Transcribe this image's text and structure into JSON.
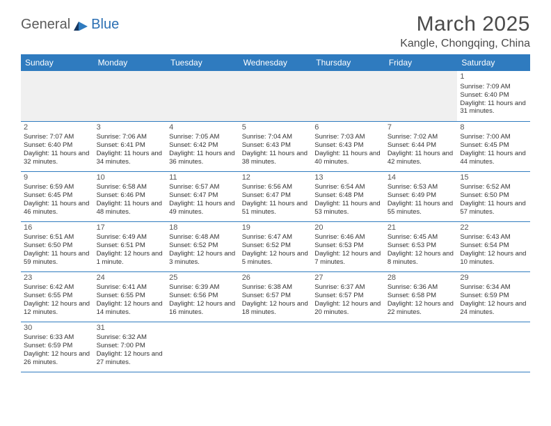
{
  "logo": {
    "part1": "General",
    "part2": "Blue"
  },
  "title": "March 2025",
  "location": "Kangle, Chongqing, China",
  "colors": {
    "header_bg": "#2f7bbf",
    "header_fg": "#ffffff",
    "logo_grey": "#5a5a5a",
    "logo_blue": "#2b6fb3",
    "text": "#333333",
    "grey_bg": "#f0f0f0",
    "border": "#2f7bbf"
  },
  "weekdays": [
    "Sunday",
    "Monday",
    "Tuesday",
    "Wednesday",
    "Thursday",
    "Friday",
    "Saturday"
  ],
  "weeks": [
    [
      null,
      null,
      null,
      null,
      null,
      null,
      {
        "n": "1",
        "sunrise": "Sunrise: 7:09 AM",
        "sunset": "Sunset: 6:40 PM",
        "daylight": "Daylight: 11 hours and 31 minutes."
      }
    ],
    [
      {
        "n": "2",
        "sunrise": "Sunrise: 7:07 AM",
        "sunset": "Sunset: 6:40 PM",
        "daylight": "Daylight: 11 hours and 32 minutes."
      },
      {
        "n": "3",
        "sunrise": "Sunrise: 7:06 AM",
        "sunset": "Sunset: 6:41 PM",
        "daylight": "Daylight: 11 hours and 34 minutes."
      },
      {
        "n": "4",
        "sunrise": "Sunrise: 7:05 AM",
        "sunset": "Sunset: 6:42 PM",
        "daylight": "Daylight: 11 hours and 36 minutes."
      },
      {
        "n": "5",
        "sunrise": "Sunrise: 7:04 AM",
        "sunset": "Sunset: 6:43 PM",
        "daylight": "Daylight: 11 hours and 38 minutes."
      },
      {
        "n": "6",
        "sunrise": "Sunrise: 7:03 AM",
        "sunset": "Sunset: 6:43 PM",
        "daylight": "Daylight: 11 hours and 40 minutes."
      },
      {
        "n": "7",
        "sunrise": "Sunrise: 7:02 AM",
        "sunset": "Sunset: 6:44 PM",
        "daylight": "Daylight: 11 hours and 42 minutes."
      },
      {
        "n": "8",
        "sunrise": "Sunrise: 7:00 AM",
        "sunset": "Sunset: 6:45 PM",
        "daylight": "Daylight: 11 hours and 44 minutes."
      }
    ],
    [
      {
        "n": "9",
        "sunrise": "Sunrise: 6:59 AM",
        "sunset": "Sunset: 6:45 PM",
        "daylight": "Daylight: 11 hours and 46 minutes."
      },
      {
        "n": "10",
        "sunrise": "Sunrise: 6:58 AM",
        "sunset": "Sunset: 6:46 PM",
        "daylight": "Daylight: 11 hours and 48 minutes."
      },
      {
        "n": "11",
        "sunrise": "Sunrise: 6:57 AM",
        "sunset": "Sunset: 6:47 PM",
        "daylight": "Daylight: 11 hours and 49 minutes."
      },
      {
        "n": "12",
        "sunrise": "Sunrise: 6:56 AM",
        "sunset": "Sunset: 6:47 PM",
        "daylight": "Daylight: 11 hours and 51 minutes."
      },
      {
        "n": "13",
        "sunrise": "Sunrise: 6:54 AM",
        "sunset": "Sunset: 6:48 PM",
        "daylight": "Daylight: 11 hours and 53 minutes."
      },
      {
        "n": "14",
        "sunrise": "Sunrise: 6:53 AM",
        "sunset": "Sunset: 6:49 PM",
        "daylight": "Daylight: 11 hours and 55 minutes."
      },
      {
        "n": "15",
        "sunrise": "Sunrise: 6:52 AM",
        "sunset": "Sunset: 6:50 PM",
        "daylight": "Daylight: 11 hours and 57 minutes."
      }
    ],
    [
      {
        "n": "16",
        "sunrise": "Sunrise: 6:51 AM",
        "sunset": "Sunset: 6:50 PM",
        "daylight": "Daylight: 11 hours and 59 minutes."
      },
      {
        "n": "17",
        "sunrise": "Sunrise: 6:49 AM",
        "sunset": "Sunset: 6:51 PM",
        "daylight": "Daylight: 12 hours and 1 minute."
      },
      {
        "n": "18",
        "sunrise": "Sunrise: 6:48 AM",
        "sunset": "Sunset: 6:52 PM",
        "daylight": "Daylight: 12 hours and 3 minutes."
      },
      {
        "n": "19",
        "sunrise": "Sunrise: 6:47 AM",
        "sunset": "Sunset: 6:52 PM",
        "daylight": "Daylight: 12 hours and 5 minutes."
      },
      {
        "n": "20",
        "sunrise": "Sunrise: 6:46 AM",
        "sunset": "Sunset: 6:53 PM",
        "daylight": "Daylight: 12 hours and 7 minutes."
      },
      {
        "n": "21",
        "sunrise": "Sunrise: 6:45 AM",
        "sunset": "Sunset: 6:53 PM",
        "daylight": "Daylight: 12 hours and 8 minutes."
      },
      {
        "n": "22",
        "sunrise": "Sunrise: 6:43 AM",
        "sunset": "Sunset: 6:54 PM",
        "daylight": "Daylight: 12 hours and 10 minutes."
      }
    ],
    [
      {
        "n": "23",
        "sunrise": "Sunrise: 6:42 AM",
        "sunset": "Sunset: 6:55 PM",
        "daylight": "Daylight: 12 hours and 12 minutes."
      },
      {
        "n": "24",
        "sunrise": "Sunrise: 6:41 AM",
        "sunset": "Sunset: 6:55 PM",
        "daylight": "Daylight: 12 hours and 14 minutes."
      },
      {
        "n": "25",
        "sunrise": "Sunrise: 6:39 AM",
        "sunset": "Sunset: 6:56 PM",
        "daylight": "Daylight: 12 hours and 16 minutes."
      },
      {
        "n": "26",
        "sunrise": "Sunrise: 6:38 AM",
        "sunset": "Sunset: 6:57 PM",
        "daylight": "Daylight: 12 hours and 18 minutes."
      },
      {
        "n": "27",
        "sunrise": "Sunrise: 6:37 AM",
        "sunset": "Sunset: 6:57 PM",
        "daylight": "Daylight: 12 hours and 20 minutes."
      },
      {
        "n": "28",
        "sunrise": "Sunrise: 6:36 AM",
        "sunset": "Sunset: 6:58 PM",
        "daylight": "Daylight: 12 hours and 22 minutes."
      },
      {
        "n": "29",
        "sunrise": "Sunrise: 6:34 AM",
        "sunset": "Sunset: 6:59 PM",
        "daylight": "Daylight: 12 hours and 24 minutes."
      }
    ],
    [
      {
        "n": "30",
        "sunrise": "Sunrise: 6:33 AM",
        "sunset": "Sunset: 6:59 PM",
        "daylight": "Daylight: 12 hours and 26 minutes."
      },
      {
        "n": "31",
        "sunrise": "Sunrise: 6:32 AM",
        "sunset": "Sunset: 7:00 PM",
        "daylight": "Daylight: 12 hours and 27 minutes."
      },
      null,
      null,
      null,
      null,
      null
    ]
  ]
}
